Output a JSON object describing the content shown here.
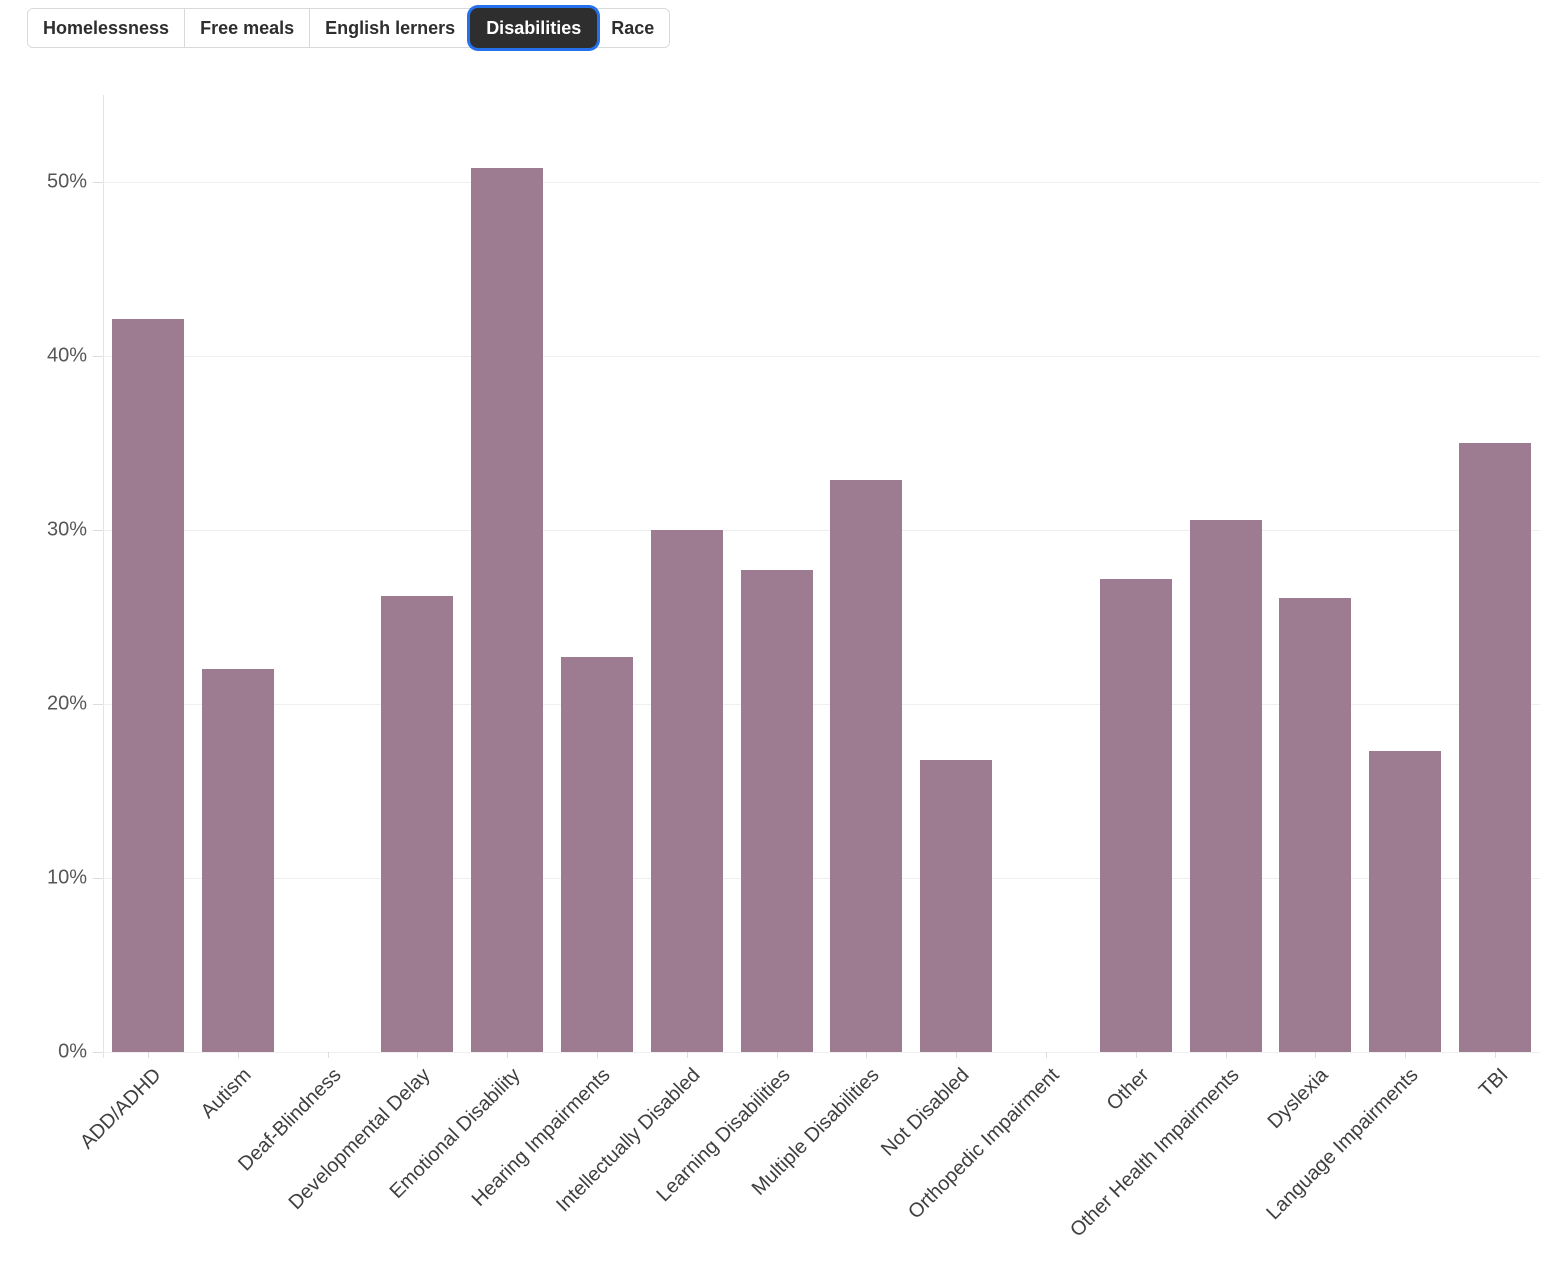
{
  "tabs": {
    "items": [
      {
        "label": "Homelessness",
        "active": false
      },
      {
        "label": "Free meals",
        "active": false
      },
      {
        "label": "English lerners",
        "active": false
      },
      {
        "label": "Disabilities",
        "active": true
      },
      {
        "label": "Race",
        "active": false
      }
    ]
  },
  "colors": {
    "bar": "#9d7b90",
    "gridline": "#efefef",
    "axis_line": "#e4e4e4",
    "tick": "#dcdcdc",
    "y_label_text": "#565656",
    "x_label_text": "#3f3f3f",
    "tab_text": "#2e2e2e",
    "tab_active_bg": "#2e2e2e",
    "tab_active_text": "#ffffff",
    "tab_focus_ring": "#2570eb",
    "tab_border": "#d9d9d9"
  },
  "chart_data": {
    "type": "bar",
    "title": "",
    "xlabel": "",
    "ylabel": "",
    "categories": [
      "ADD/ADHD",
      "Autism",
      "Deaf-Blindness",
      "Developmental Delay",
      "Emotional Disability",
      "Hearing Impairments",
      "Intellectually Disabled",
      "Learning Disabilities",
      "Multiple Disabilities",
      "Not Disabled",
      "Orthopedic Impairment",
      "Other",
      "Other Health Impairments",
      "Dyslexia",
      "Language Impairments",
      "TBI"
    ],
    "values": [
      42.1,
      22.0,
      0,
      26.2,
      50.8,
      22.7,
      30.0,
      27.7,
      32.9,
      16.8,
      0,
      27.2,
      30.6,
      26.1,
      17.3,
      35.0
    ],
    "ylim": [
      0,
      55
    ],
    "yticks": [
      0,
      10,
      20,
      30,
      40,
      50
    ],
    "ytick_labels": [
      "0%",
      "10%",
      "20%",
      "30%",
      "40%",
      "50%"
    ],
    "grid": true,
    "legend": "none",
    "x_label_rotation_deg": -45
  }
}
